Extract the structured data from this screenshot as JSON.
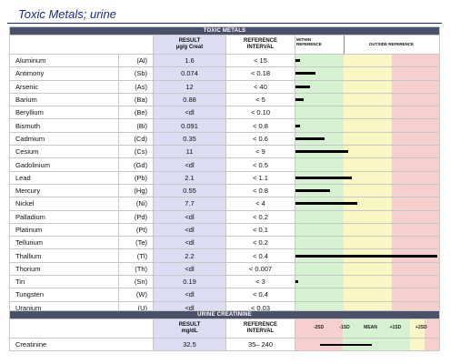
{
  "page_title": "Toxic Metals; urine",
  "metals_table": {
    "band_title": "TOXIC METALS",
    "result_header": "RESULT",
    "result_unit": "µg/g Creat",
    "reference_header": "REFERENCE",
    "reference_header2": "INTERVAL",
    "within_header": "WITHIN",
    "within_header2": "REFERENCE",
    "outside_header": "OUTSIDE REFERENCE",
    "colors": {
      "green": "#d7f2d2",
      "yellow": "#fbf7c4",
      "red": "#f7cfcf",
      "band": "#4b5168",
      "result_bg": "#dcdcf3"
    },
    "rows": [
      {
        "name": "Aluminum",
        "symbol": "(Al)",
        "result": "1.6",
        "reference": "< 15",
        "level": 0.03
      },
      {
        "name": "Antimony",
        "symbol": "(Sb)",
        "result": "0.074",
        "reference": "< 0.18",
        "level": 0.14
      },
      {
        "name": "Arsenic",
        "symbol": "(As)",
        "result": "12",
        "reference": "< 40",
        "level": 0.1
      },
      {
        "name": "Barium",
        "symbol": "(Ba)",
        "result": "0.88",
        "reference": "< 5",
        "level": 0.06
      },
      {
        "name": "Beryllium",
        "symbol": "(Be)",
        "result": "<dl",
        "reference": "< 0.10",
        "level": 0
      },
      {
        "name": "Bismuth",
        "symbol": "(Bi)",
        "result": "0.091",
        "reference": "< 0.8",
        "level": 0.03
      },
      {
        "name": "Cadmium",
        "symbol": "(Cd)",
        "result": "0.35",
        "reference": "< 0.6",
        "level": 0.2
      },
      {
        "name": "Cesium",
        "symbol": "(Cs)",
        "result": "11",
        "reference": "< 9",
        "level": 0.37
      },
      {
        "name": "Gadolinium",
        "symbol": "(Gd)",
        "result": "<dl",
        "reference": "< 0.5",
        "level": 0
      },
      {
        "name": "Lead",
        "symbol": "(Pb)",
        "result": "2.1",
        "reference": "< 1.1",
        "level": 0.39
      },
      {
        "name": "Mercury",
        "symbol": "(Hg)",
        "result": "0.55",
        "reference": "< 0.8",
        "level": 0.24
      },
      {
        "name": "Nickel",
        "symbol": "(Ni)",
        "result": "7.7",
        "reference": "< 4",
        "level": 0.43
      },
      {
        "name": "Palladium",
        "symbol": "(Pd)",
        "result": "<dl",
        "reference": "< 0.2",
        "level": 0
      },
      {
        "name": "Platinum",
        "symbol": "(Pt)",
        "result": "<dl",
        "reference": "< 0.1",
        "level": 0
      },
      {
        "name": "Tellurium",
        "symbol": "(Te)",
        "result": "<dl",
        "reference": "< 0.2",
        "level": 0
      },
      {
        "name": "Thallium",
        "symbol": "(Tl)",
        "result": "2.2",
        "reference": "< 0.4",
        "level": 0.99
      },
      {
        "name": "Thorium",
        "symbol": "(Th)",
        "result": "<dl",
        "reference": "< 0.007",
        "level": 0
      },
      {
        "name": "Tin",
        "symbol": "(Sn)",
        "result": "0.19",
        "reference": "< 3",
        "level": 0.02
      },
      {
        "name": "Tungsten",
        "symbol": "(W)",
        "result": "<dl",
        "reference": "< 0.4",
        "level": 0
      },
      {
        "name": "Uranium",
        "symbol": "(U)",
        "result": "<dl",
        "reference": "< 0.03",
        "level": 0
      }
    ]
  },
  "creatinine_table": {
    "band_title": "URINE CREATININE",
    "result_header": "RESULT",
    "result_unit": "mg/dL",
    "reference_header": "REFERENCE",
    "reference_header2": "INTERVAL",
    "sd_labels": [
      "-2SD",
      "-1SD",
      "MEAN",
      "+1SD",
      "+2SD"
    ],
    "row": {
      "name": "Creatinine",
      "result": "32.5",
      "reference": "35– 240",
      "whisker_from": 0.17,
      "whisker_to": 0.53
    }
  }
}
